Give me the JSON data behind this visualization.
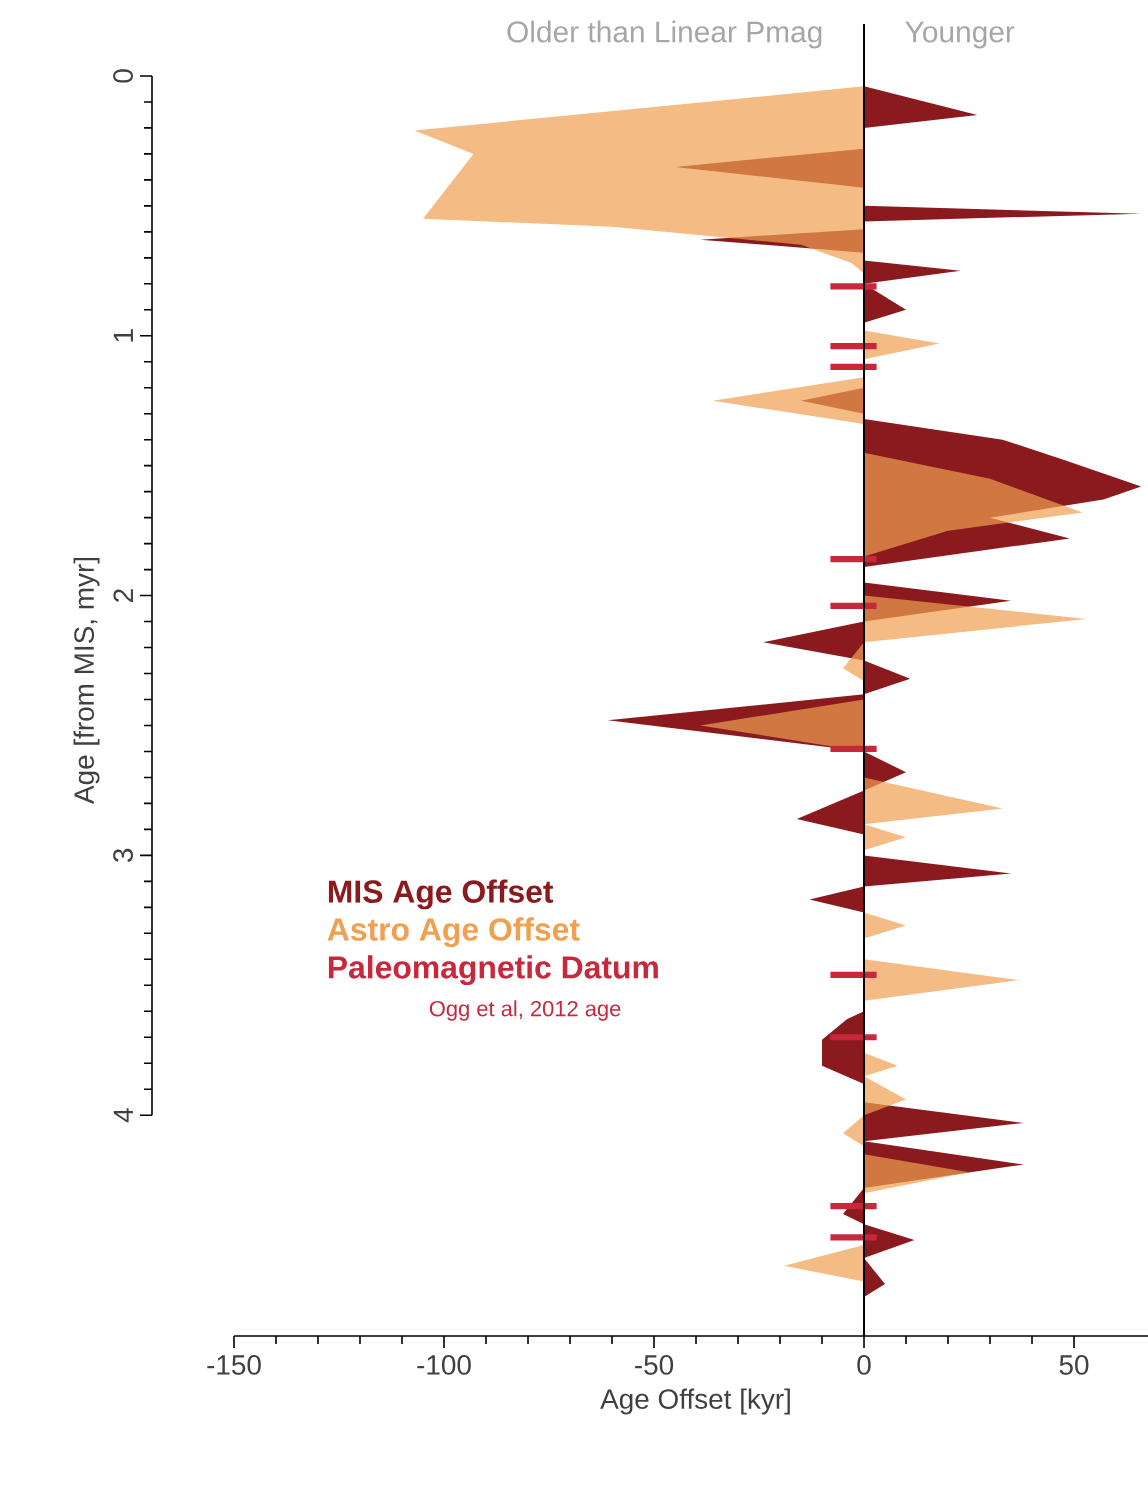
{
  "chart_data": {
    "type": "area",
    "orientation": "horizontal",
    "xlabel": "Age Offset [kyr]",
    "ylabel": "Age [from MIS, myr]",
    "xlim": [
      -150,
      70
    ],
    "xticks": [
      -150,
      -100,
      -50,
      0,
      50
    ],
    "ylim": [
      4.85,
      -0.2
    ],
    "yticks": [
      0,
      1,
      2,
      3,
      4
    ],
    "legend": "bottom left",
    "annotations": [
      "Older than Linear Pmag",
      "Younger",
      "Ogg et al, 2012 age"
    ],
    "ref_lines": [
      {
        "axis": "x",
        "value": 0,
        "color": "#000000"
      }
    ],
    "series": [
      {
        "name": "MIS Age Offset",
        "color": "#8b1a1e",
        "x": [
          0.04,
          0.15,
          0.2,
          0.28,
          0.35,
          0.43,
          0.5,
          0.53,
          0.56,
          0.59,
          0.63,
          0.68,
          0.71,
          0.75,
          0.8,
          0.9,
          0.95,
          1.2,
          1.25,
          1.3,
          1.32,
          1.4,
          1.48,
          1.58,
          1.63,
          1.7,
          1.78,
          1.89,
          1.95,
          2.02,
          2.1,
          2.18,
          2.25,
          2.32,
          2.38,
          2.48,
          2.6,
          2.68,
          2.75,
          2.86,
          2.92,
          3.0,
          3.07,
          3.12,
          3.17,
          3.22,
          3.6,
          3.63,
          3.71,
          3.81,
          3.88,
          3.95,
          4.03,
          4.1,
          4.19,
          4.28,
          4.38,
          4.42,
          4.48,
          4.55,
          4.65,
          4.7
        ],
        "values": [
          0,
          27,
          0,
          0,
          -45,
          0,
          0,
          66,
          0,
          0,
          -39,
          0,
          0,
          23,
          0,
          10,
          0,
          0,
          -15,
          0,
          0,
          33,
          48,
          66,
          57,
          30,
          49,
          0,
          0,
          35,
          0,
          -24,
          0,
          11,
          0,
          -61,
          0,
          10,
          0,
          -16,
          0,
          0,
          35,
          0,
          -13,
          0,
          0,
          -4,
          -10,
          -10,
          0,
          0,
          38,
          0,
          38,
          0,
          -5,
          0,
          12,
          0,
          5,
          0
        ]
      },
      {
        "name": "Astro Age Offset",
        "color": "#f0a050",
        "x": [
          0.04,
          0.21,
          0.3,
          0.55,
          0.58,
          0.65,
          0.72,
          0.76,
          0.98,
          1.03,
          1.09,
          1.16,
          1.25,
          1.34,
          1.45,
          1.55,
          1.68,
          1.75,
          1.85,
          2.0,
          2.09,
          2.18,
          2.28,
          2.33,
          2.4,
          2.5,
          2.6,
          2.7,
          2.82,
          2.88,
          2.93,
          2.98,
          3.22,
          3.27,
          3.32,
          3.4,
          3.48,
          3.56,
          3.76,
          3.81,
          3.85,
          3.94,
          4.0,
          4.07,
          4.12,
          4.15,
          4.22,
          4.3,
          4.5,
          4.58,
          4.64
        ],
        "values": [
          0,
          -107,
          -93,
          -105,
          -60,
          -15,
          -3,
          0,
          0,
          18,
          0,
          0,
          -36,
          0,
          0,
          30,
          52,
          20,
          0,
          0,
          53,
          0,
          -5,
          0,
          0,
          -39,
          0,
          0,
          33,
          0,
          10,
          0,
          0,
          10,
          0,
          0,
          37,
          0,
          0,
          8,
          0,
          10,
          0,
          -5,
          0,
          0,
          25,
          0,
          0,
          -19,
          0
        ]
      },
      {
        "name": "Paleomagnetic Datum",
        "type": "bar",
        "color": "#c8283c",
        "x": [
          0.81,
          1.04,
          1.12,
          1.86,
          2.04,
          2.59,
          3.46,
          3.7,
          4.35,
          4.47
        ],
        "base": [
          -8,
          -8,
          -8,
          -8,
          -8,
          -8,
          -8,
          -8,
          -8,
          -8
        ],
        "values": [
          11,
          11,
          11,
          11,
          11,
          11,
          11,
          11,
          11,
          11
        ]
      }
    ]
  }
}
